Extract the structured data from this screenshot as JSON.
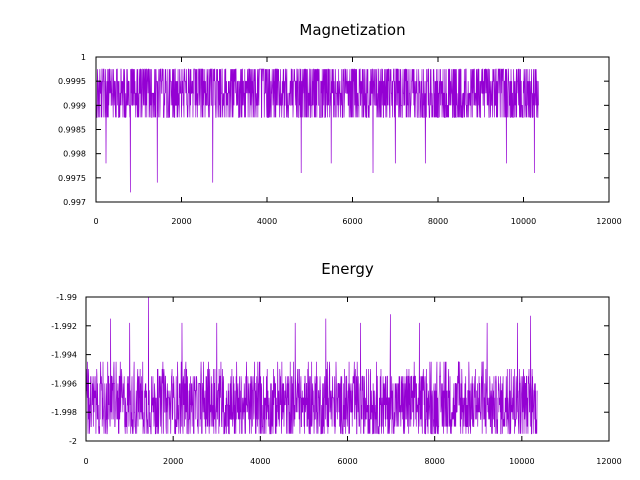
{
  "chart_data": [
    {
      "type": "line",
      "title": "Magnetization",
      "xlabel": "",
      "ylabel": "",
      "xlim": [
        0,
        12000
      ],
      "ylim": [
        0.997,
        1.0
      ],
      "x_ticks": [
        "0",
        "2000",
        "4000",
        "6000",
        "8000",
        "10000",
        "12000"
      ],
      "y_ticks": [
        "0.997",
        "0.9975",
        "0.998",
        "0.9985",
        "0.999",
        "0.9995",
        "1"
      ],
      "grid": false,
      "legend": "none",
      "color": "#9400d3",
      "series": [
        {
          "x_range": [
            0,
            10350
          ],
          "levels": [
            0.99975,
            0.9995,
            0.99925,
            0.999,
            0.99875
          ],
          "typical_band": [
            0.99875,
            0.99975
          ],
          "values_sampled_every_250": [
            0.99925,
            0.9995,
            0.999,
            0.99975,
            0.99925,
            0.99875,
            0.9995,
            0.99925,
            0.999,
            0.9995,
            0.99925,
            0.99975,
            0.999,
            0.9995,
            0.99925,
            0.99875,
            0.9995,
            0.99925,
            0.99975,
            0.999,
            0.9995,
            0.99925,
            0.999,
            0.9995,
            0.99925,
            0.99975,
            0.99875,
            0.9995,
            0.99925,
            0.999,
            0.9995,
            0.99925,
            0.99975,
            0.999,
            0.9995,
            0.99925,
            0.99875,
            0.9995,
            0.99925,
            0.99975,
            0.999,
            0.9995
          ],
          "notable_minima": [
            {
              "x": 800,
              "y": 0.9972
            },
            {
              "x": 1430,
              "y": 0.9974
            },
            {
              "x": 2730,
              "y": 0.9974
            },
            {
              "x": 4800,
              "y": 0.9976
            },
            {
              "x": 6480,
              "y": 0.9976
            },
            {
              "x": 10250,
              "y": 0.9976
            },
            {
              "x": 230,
              "y": 0.9978
            },
            {
              "x": 5500,
              "y": 0.9978
            },
            {
              "x": 7000,
              "y": 0.9978
            },
            {
              "x": 7700,
              "y": 0.9978
            },
            {
              "x": 9600,
              "y": 0.9978
            }
          ]
        }
      ]
    },
    {
      "type": "line",
      "title": "Energy",
      "xlabel": "",
      "ylabel": "",
      "xlim": [
        0,
        12000
      ],
      "ylim": [
        -2.0,
        -1.99
      ],
      "x_ticks": [
        "0",
        "2000",
        "4000",
        "6000",
        "8000",
        "10000",
        "12000"
      ],
      "y_ticks": [
        "-2",
        "-1.998",
        "-1.996",
        "-1.994",
        "-1.992",
        "-1.99"
      ],
      "grid": false,
      "legend": "none",
      "color": "#9400d3",
      "series": [
        {
          "x_range": [
            0,
            10350
          ],
          "levels": [
            -1.9995,
            -1.999,
            -1.9985,
            -1.998,
            -1.9975,
            -1.997,
            -1.9965,
            -1.996,
            -1.9955,
            -1.995,
            -1.9945
          ],
          "typical_band": [
            -1.9995,
            -1.9955
          ],
          "values_sampled_every_250": [
            -1.9975,
            -1.9985,
            -1.9965,
            -1.9995,
            -1.997,
            -1.996,
            -1.998,
            -1.9975,
            -1.999,
            -1.9965,
            -1.9985,
            -1.997,
            -1.9995,
            -1.998,
            -1.996,
            -1.9975,
            -1.9985,
            -1.9965,
            -1.999,
            -1.997,
            -1.998,
            -1.9955,
            -1.9985,
            -1.9975,
            -1.9995,
            -1.9965,
            -1.998,
            -1.997,
            -1.999,
            -1.996,
            -1.9985,
            -1.9975,
            -1.997,
            -1.9995,
            -1.9965,
            -1.998,
            -1.997,
            -1.9985,
            -1.996,
            -1.9975,
            -1.999,
            -1.9965
          ],
          "notable_maxima": [
            {
              "x": 1430,
              "y": -1.99
            },
            {
              "x": 560,
              "y": -1.9915
            },
            {
              "x": 1000,
              "y": -1.9918
            },
            {
              "x": 2200,
              "y": -1.9918
            },
            {
              "x": 3000,
              "y": -1.9918
            },
            {
              "x": 4800,
              "y": -1.9918
            },
            {
              "x": 5500,
              "y": -1.9915
            },
            {
              "x": 6300,
              "y": -1.9918
            },
            {
              "x": 6980,
              "y": -1.9912
            },
            {
              "x": 7650,
              "y": -1.9918
            },
            {
              "x": 9200,
              "y": -1.9918
            },
            {
              "x": 9900,
              "y": -1.9918
            },
            {
              "x": 10200,
              "y": -1.9913
            }
          ]
        }
      ]
    }
  ]
}
